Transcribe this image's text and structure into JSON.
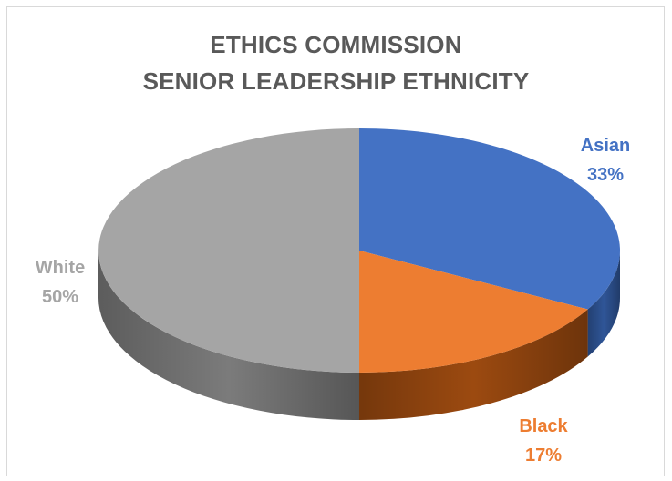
{
  "chart_data": {
    "type": "pie",
    "title_lines": [
      "ETHICS COMMISSION",
      "SENIOR LEADERSHIP ETHNICITY"
    ],
    "slices": [
      {
        "name": "Asian",
        "value": 33,
        "label": "33%",
        "color": "#4472c4",
        "side_color": "#2f5597"
      },
      {
        "name": "Black",
        "value": 17,
        "label": "17%",
        "color": "#ed7d31",
        "side_color": "#9c4a10"
      },
      {
        "name": "White",
        "value": 50,
        "label": "50%",
        "color": "#a5a5a5",
        "side_color": "#7b7b7b"
      }
    ],
    "legend": "none",
    "data_labels": "outside"
  }
}
